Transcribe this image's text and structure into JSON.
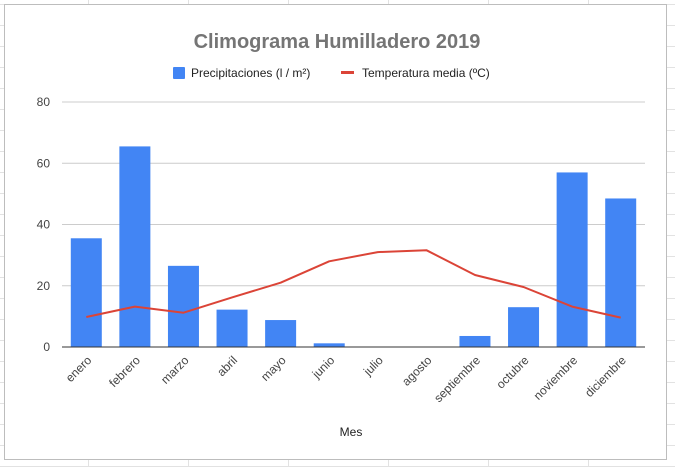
{
  "chart_data": {
    "type": "bar",
    "title": "Climograma Humilladero 2019",
    "xlabel": "Mes",
    "ylabel": "",
    "ylim": [
      0,
      80
    ],
    "yticks": [
      0,
      20,
      40,
      60,
      80
    ],
    "grid": true,
    "legend_position": "top",
    "categories": [
      "enero",
      "febrero",
      "marzo",
      "abril",
      "mayo",
      "junio",
      "julio",
      "agosto",
      "septiembre",
      "octubre",
      "noviembre",
      "diciembre"
    ],
    "series": [
      {
        "name": "Precipitaciones (l / m²)",
        "type": "bar",
        "color": "#4285f4",
        "values": [
          35.5,
          65.5,
          26.5,
          12.2,
          8.8,
          1.2,
          0,
          0,
          3.6,
          13,
          57,
          48.5
        ]
      },
      {
        "name": "Temperatura media (ºC)",
        "type": "line",
        "color": "#db4437",
        "values": [
          9.8,
          13.2,
          11.2,
          16.2,
          21,
          28,
          31,
          31.6,
          23.5,
          19.6,
          13.2,
          9.6
        ]
      }
    ]
  }
}
